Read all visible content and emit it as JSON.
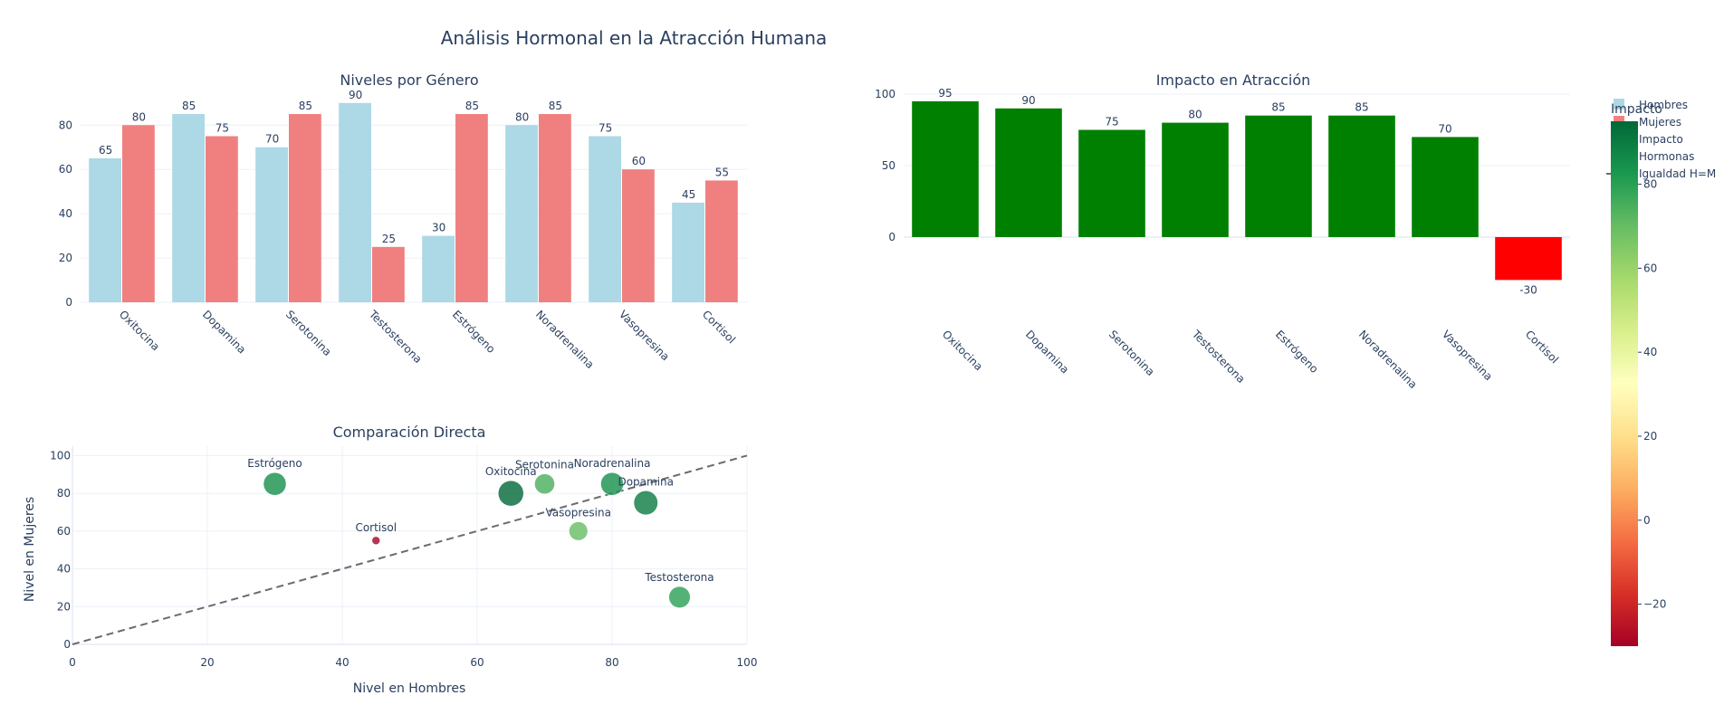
{
  "title": "Análisis Hormonal en la Atracción Humana",
  "hormones": [
    "Oxitocina",
    "Dopamina",
    "Serotonina",
    "Testosterona",
    "Estrógeno",
    "Noradrenalina",
    "Vasopresina",
    "Cortisol"
  ],
  "chart_data": [
    {
      "type": "bar",
      "title": "Niveles por Género",
      "categories": [
        "Oxitocina",
        "Dopamina",
        "Serotonina",
        "Testosterona",
        "Estrógeno",
        "Noradrenalina",
        "Vasopresina",
        "Cortisol"
      ],
      "series": [
        {
          "name": "Hombres",
          "values": [
            65,
            85,
            70,
            90,
            30,
            80,
            75,
            45
          ],
          "color": "#add8e6"
        },
        {
          "name": "Mujeres",
          "values": [
            80,
            75,
            85,
            25,
            85,
            85,
            60,
            55
          ],
          "color": "#f08080"
        }
      ],
      "yticks": [
        0,
        20,
        40,
        60,
        80
      ],
      "ylim": [
        0,
        94
      ]
    },
    {
      "type": "bar",
      "title": "Impacto en Atracción",
      "series_name": "Impacto",
      "categories": [
        "Oxitocina",
        "Dopamina",
        "Serotonina",
        "Testosterona",
        "Estrógeno",
        "Noradrenalina",
        "Vasopresina",
        "Cortisol"
      ],
      "values": [
        95,
        90,
        75,
        80,
        85,
        85,
        70,
        -30
      ],
      "positive_color": "#008000",
      "negative_color": "#ff0000",
      "yticks": [
        0,
        50,
        100
      ],
      "ylim": [
        -38,
        100
      ]
    },
    {
      "type": "scatter",
      "title": "Comparación Directa",
      "series_name": "Hormonas",
      "xlabel": "Nivel en Hombres",
      "ylabel": "Nivel en Mujeres",
      "labels": [
        "Oxitocina",
        "Dopamina",
        "Serotonina",
        "Testosterona",
        "Estrógeno",
        "Noradrenalina",
        "Vasopresina",
        "Cortisol"
      ],
      "x": [
        65,
        85,
        70,
        90,
        30,
        80,
        75,
        45
      ],
      "y": [
        80,
        75,
        85,
        25,
        85,
        85,
        60,
        55
      ],
      "color_values": [
        95,
        90,
        75,
        80,
        85,
        85,
        70,
        -30
      ],
      "xlim": [
        0,
        100
      ],
      "ylim": [
        0,
        105
      ],
      "xticks": [
        0,
        20,
        40,
        60,
        80,
        100
      ],
      "yticks": [
        0,
        20,
        40,
        60,
        80,
        100
      ],
      "reference_line": {
        "name": "Igualdad H=M",
        "x": [
          0,
          100
        ],
        "y": [
          0,
          100
        ]
      }
    }
  ],
  "colorbar": {
    "title": "Impacto",
    "ticks": [
      80,
      60,
      40,
      20,
      0,
      -20
    ],
    "range": [
      -30,
      95
    ],
    "colorscale": "RdYlGn"
  },
  "legend": {
    "items": [
      {
        "label": "Hombres",
        "color": "#add8e6",
        "kind": "square"
      },
      {
        "label": "Mujeres",
        "color": "#f08080",
        "kind": "square"
      },
      {
        "label": "Impacto",
        "color": "#006837",
        "kind": "square"
      },
      {
        "label": "Hormonas",
        "color": "#1a9850",
        "kind": "dot"
      },
      {
        "label": "Igualdad H=M",
        "color": "#6b6b6b",
        "kind": "dash"
      }
    ]
  }
}
